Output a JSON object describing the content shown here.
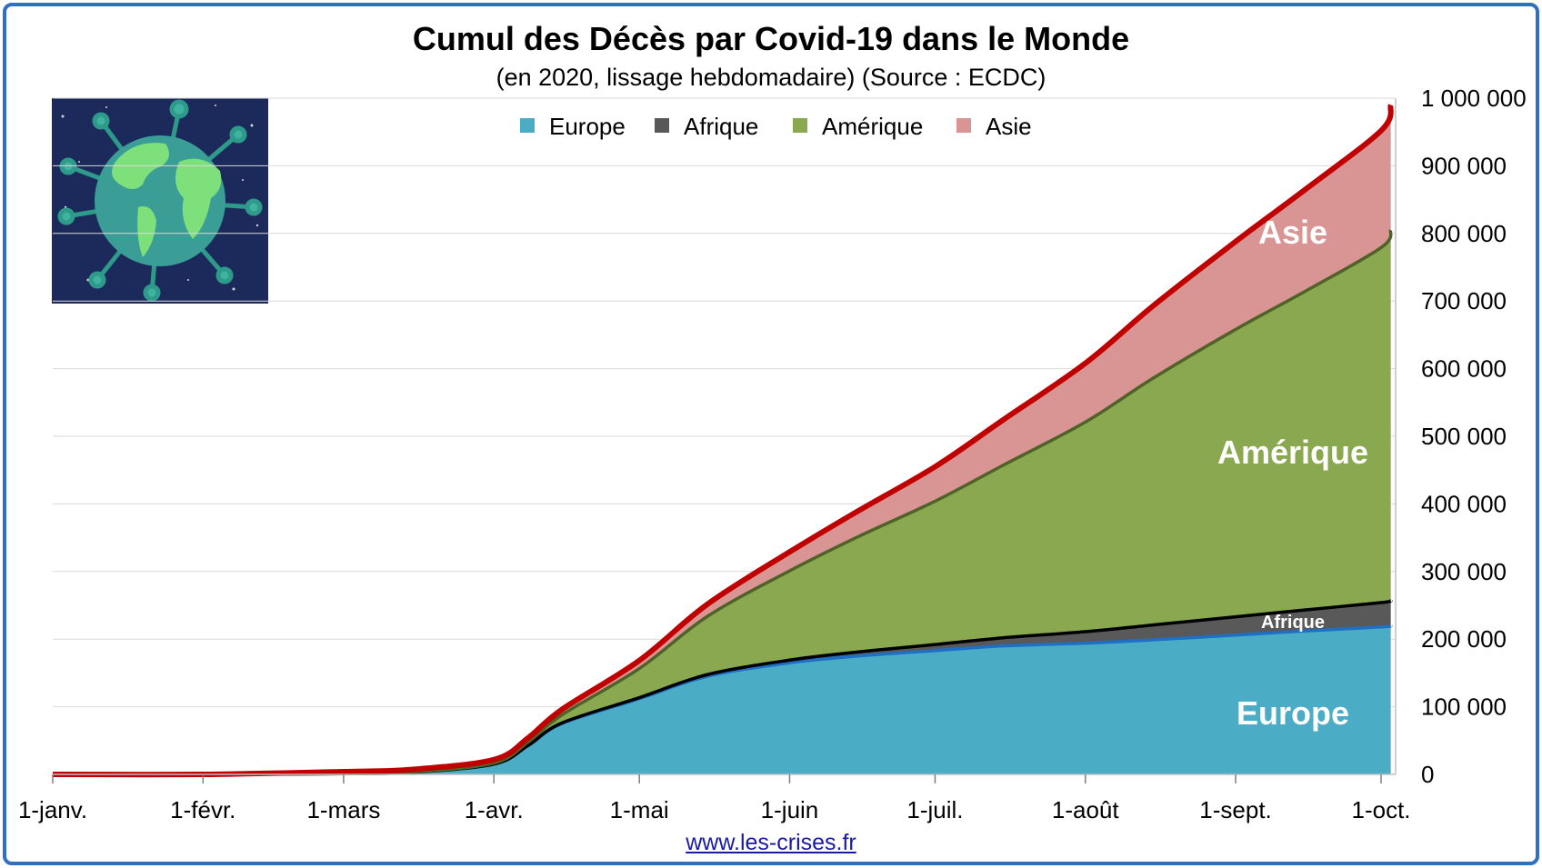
{
  "title": "Cumul des Décès par Covid-19 dans le Monde",
  "subtitle": "(en 2020, lissage hebdomadaire) (Source : ECDC)",
  "source_link": "www.les-crises.fr",
  "image_icon": "globe-virus-icon",
  "chart_data": {
    "type": "area",
    "stacked": true,
    "x_tick_labels": [
      "1-janv.",
      "1-févr.",
      "1-mars",
      "1-avr.",
      "1-mai",
      "1-juin",
      "1-juil.",
      "1-août",
      "1-sept.",
      "1-oct."
    ],
    "y_tick_labels": [
      "0",
      "100 000",
      "200 000",
      "300 000",
      "400 000",
      "500 000",
      "600 000",
      "700 000",
      "800 000",
      "900 000",
      "1 000 000"
    ],
    "ylim": [
      0,
      1000000
    ],
    "y_axis_position": "right",
    "grid": true,
    "legend_position": "top-center",
    "x": [
      "2020-01-01",
      "2020-02-01",
      "2020-03-01",
      "2020-03-15",
      "2020-04-01",
      "2020-04-08",
      "2020-04-15",
      "2020-05-01",
      "2020-05-15",
      "2020-06-01",
      "2020-06-15",
      "2020-07-01",
      "2020-07-15",
      "2020-08-01",
      "2020-08-15",
      "2020-09-01",
      "2020-09-15",
      "2020-10-01",
      "2020-10-03"
    ],
    "series": [
      {
        "name": "Europe",
        "color": "#4bacc6",
        "line_color": "#1f6fc4",
        "values": [
          0,
          0,
          1000,
          3000,
          15000,
          42000,
          75000,
          112000,
          145000,
          165000,
          175000,
          183000,
          190000,
          194000,
          199000,
          206000,
          212000,
          218000,
          220000
        ]
      },
      {
        "name": "Afrique",
        "color": "#595959",
        "line_color": "#000000",
        "values": [
          0,
          0,
          0,
          50,
          300,
          600,
          900,
          1500,
          2500,
          4000,
          6000,
          9000,
          12000,
          17000,
          22000,
          27000,
          31000,
          36000,
          37000
        ]
      },
      {
        "name": "Amérique",
        "color": "#8aa84f",
        "line_color": "#4f6228",
        "values": [
          0,
          0,
          0,
          200,
          1500,
          5000,
          12000,
          43000,
          86000,
          132000,
          170000,
          212000,
          255000,
          310000,
          365000,
          425000,
          470000,
          525000,
          548000
        ]
      },
      {
        "name": "Asie",
        "color": "#d99594",
        "line_color": "#c00000",
        "values": [
          0,
          0,
          3000,
          4000,
          5000,
          6000,
          8000,
          12000,
          18000,
          28000,
          38000,
          51000,
          67000,
          87000,
          107000,
          130000,
          150000,
          173000,
          185000
        ]
      }
    ],
    "area_labels": [
      {
        "text": "Asie",
        "series": "Asie"
      },
      {
        "text": "Amérique",
        "series": "Amérique"
      },
      {
        "text": "Afrique",
        "series": "Afrique"
      },
      {
        "text": "Europe",
        "series": "Europe"
      }
    ]
  }
}
